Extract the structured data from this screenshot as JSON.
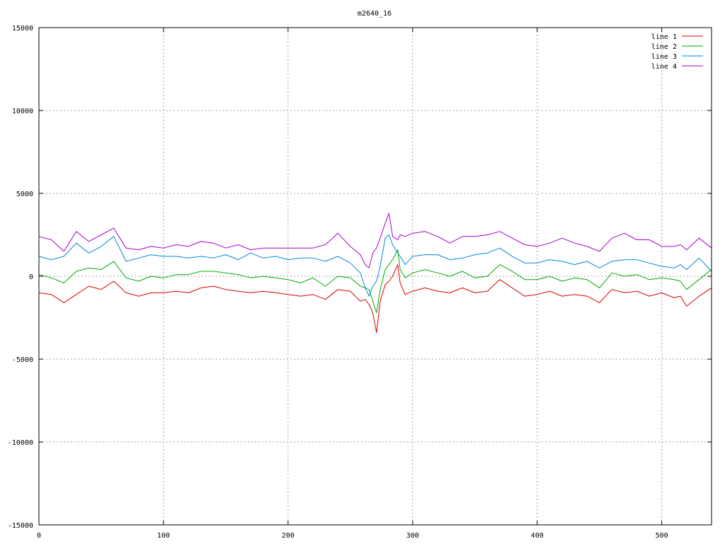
{
  "chart_data": {
    "type": "line",
    "title": "m2640_16",
    "xlabel": "",
    "ylabel": "",
    "xlim": [
      0,
      540
    ],
    "ylim": [
      -15000,
      15000
    ],
    "x_ticks": [
      0,
      100,
      200,
      300,
      400,
      500
    ],
    "y_ticks": [
      -15000,
      -10000,
      -5000,
      0,
      5000,
      10000,
      15000
    ],
    "grid": true,
    "legend_position": "top-right",
    "x": [
      0,
      10,
      20,
      30,
      40,
      50,
      60,
      70,
      80,
      90,
      100,
      110,
      120,
      130,
      140,
      150,
      160,
      170,
      180,
      190,
      200,
      210,
      220,
      230,
      240,
      250,
      258,
      262,
      265,
      268,
      271,
      274,
      278,
      281,
      284,
      288,
      290,
      294,
      300,
      310,
      320,
      330,
      340,
      350,
      360,
      370,
      380,
      390,
      400,
      410,
      420,
      430,
      440,
      450,
      460,
      470,
      480,
      490,
      500,
      510,
      515,
      520,
      530,
      540
    ],
    "series": [
      {
        "name": "line 1",
        "color": "#dd0000",
        "values": [
          -1000,
          -1100,
          -1600,
          -1100,
          -600,
          -800,
          -300,
          -1000,
          -1200,
          -1000,
          -1000,
          -900,
          -1000,
          -700,
          -600,
          -800,
          -900,
          -1000,
          -900,
          -1000,
          -1100,
          -1200,
          -1100,
          -1400,
          -800,
          -900,
          -1500,
          -1400,
          -1700,
          -2200,
          -3400,
          -1500,
          -500,
          -300,
          0,
          700,
          -400,
          -1100,
          -900,
          -700,
          -900,
          -1000,
          -700,
          -1000,
          -900,
          -200,
          -700,
          -1200,
          -1100,
          -900,
          -1200,
          -1100,
          -1200,
          -1600,
          -800,
          -1000,
          -900,
          -1200,
          -1000,
          -1300,
          -1200,
          -1800,
          -1200,
          -700
        ]
      },
      {
        "name": "line 2",
        "color": "#00aa00",
        "values": [
          100,
          -100,
          -400,
          300,
          500,
          400,
          900,
          -100,
          -300,
          0,
          -100,
          100,
          100,
          300,
          300,
          200,
          100,
          -100,
          0,
          -100,
          -200,
          -400,
          -100,
          -600,
          0,
          -100,
          -600,
          -700,
          -800,
          -1500,
          -2200,
          -800,
          400,
          700,
          1000,
          1600,
          400,
          -100,
          200,
          400,
          200,
          0,
          300,
          -100,
          0,
          700,
          300,
          -200,
          -200,
          0,
          -300,
          -100,
          -200,
          -700,
          200,
          0,
          100,
          -200,
          -100,
          -200,
          -300,
          -800,
          -200,
          400
        ]
      },
      {
        "name": "line 3",
        "color": "#0088dd",
        "values": [
          1200,
          1000,
          1200,
          2000,
          1400,
          1800,
          2400,
          900,
          1100,
          1300,
          1200,
          1200,
          1100,
          1200,
          1100,
          1300,
          1000,
          1400,
          1100,
          1200,
          1000,
          1100,
          1100,
          900,
          1200,
          800,
          200,
          -700,
          -1200,
          -600,
          -300,
          600,
          2300,
          2500,
          1900,
          1400,
          1200,
          700,
          1200,
          1300,
          1300,
          1000,
          1100,
          1300,
          1400,
          1700,
          1200,
          800,
          800,
          1000,
          900,
          700,
          900,
          500,
          900,
          1000,
          1000,
          800,
          600,
          500,
          700,
          400,
          1100,
          300
        ]
      },
      {
        "name": "line 4",
        "color": "#aa00cc",
        "values": [
          2400,
          2200,
          1500,
          2700,
          2100,
          2500,
          2900,
          1700,
          1600,
          1800,
          1700,
          1900,
          1800,
          2100,
          2000,
          1700,
          1900,
          1600,
          1700,
          1700,
          1700,
          1700,
          1700,
          1900,
          2600,
          1800,
          1300,
          700,
          500,
          1400,
          1700,
          2300,
          3200,
          3800,
          2400,
          2200,
          2500,
          2400,
          2600,
          2700,
          2400,
          2000,
          2400,
          2400,
          2500,
          2700,
          2300,
          1900,
          1800,
          2000,
          2300,
          2000,
          1800,
          1500,
          2300,
          2600,
          2200,
          2200,
          1800,
          1800,
          1900,
          1600,
          2300,
          1700
        ]
      }
    ]
  }
}
